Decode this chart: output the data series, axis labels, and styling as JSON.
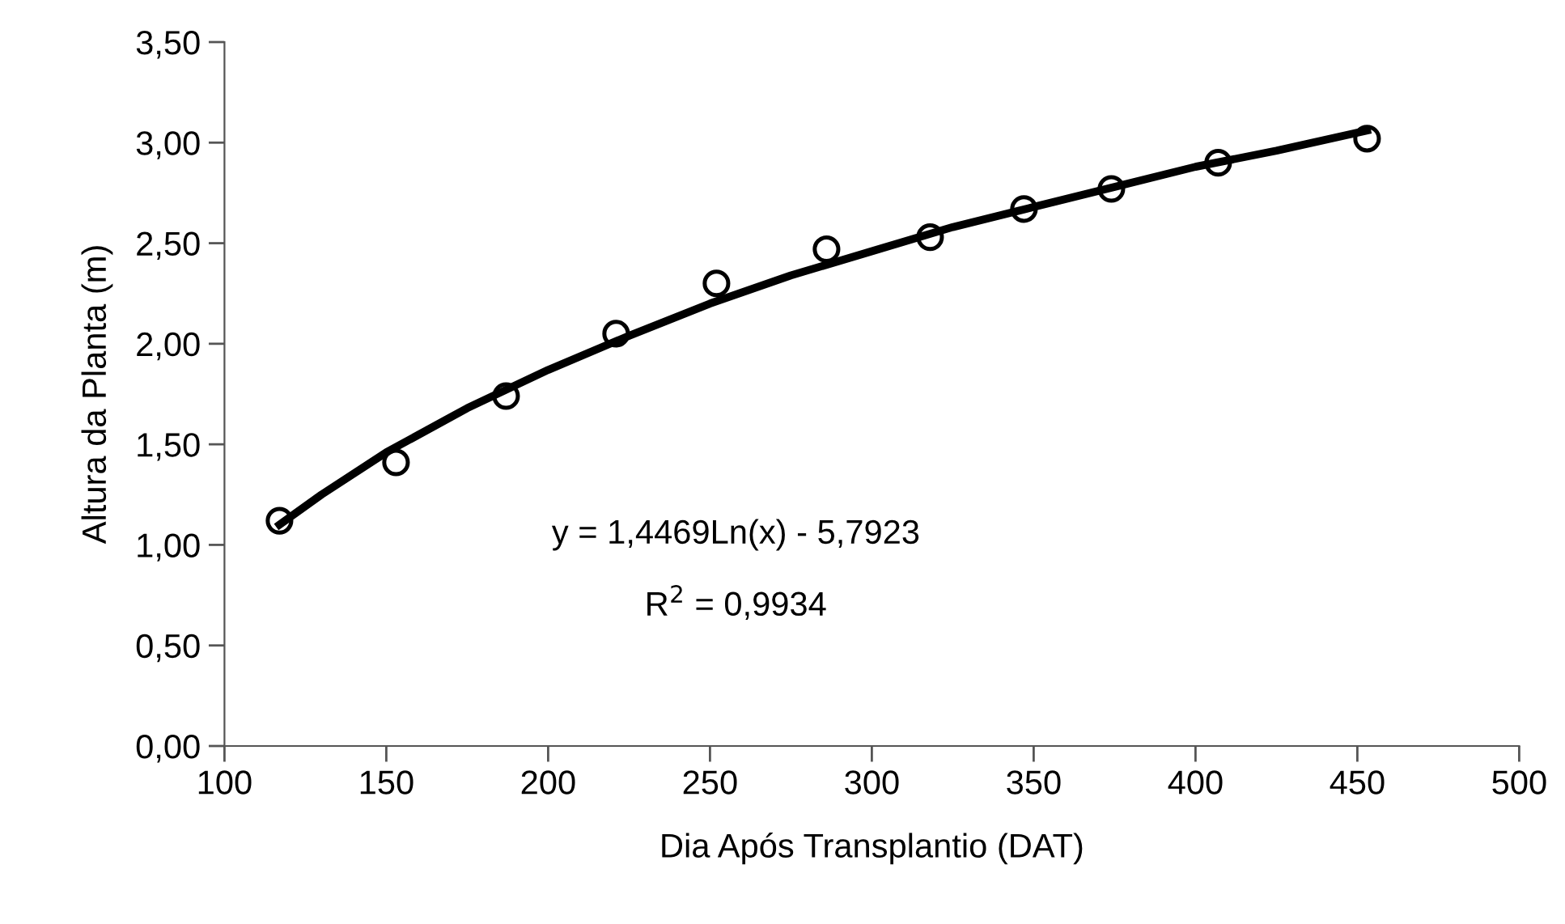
{
  "chart_data": {
    "type": "scatter",
    "xlabel": "Dia Após Transplantio (DAT)",
    "ylabel": "Altura da Planta (m)",
    "annotations": [
      "y = 1,4469Ln(x) - 5,7923",
      "R$^{2}$ = 0,9934"
    ],
    "series": [
      {
        "color": "#000000",
        "marker": "circle",
        "x": [
          117,
          153,
          187,
          221,
          252,
          286,
          318,
          347,
          374,
          407,
          453
        ],
        "values": [
          1.12,
          1.41,
          1.74,
          2.05,
          2.3,
          2.47,
          2.53,
          2.67,
          2.77,
          2.9,
          3.02
        ]
      },
      {
        "type": "line",
        "color": "#000000",
        "marker": "none",
        "line_style": "solid",
        "x": [
          117,
          130,
          150,
          175,
          200,
          225,
          250,
          275,
          300,
          325,
          350,
          375,
          400,
          425,
          453
        ],
        "values": [
          1.1,
          1.25,
          1.46,
          1.68,
          1.87,
          2.04,
          2.2,
          2.34,
          2.46,
          2.58,
          2.68,
          2.78,
          2.88,
          2.96,
          3.06
        ]
      }
    ],
    "xlim": [
      100,
      500
    ],
    "xticks": [
      100,
      150,
      200,
      250,
      300,
      350,
      400,
      450,
      500
    ],
    "ylim": [
      0,
      3.5
    ],
    "yticks": [
      {
        "value": 0,
        "label": "0,00"
      },
      {
        "value": 0.5,
        "label": "0,50"
      },
      {
        "value": 1,
        "label": "1,00"
      },
      {
        "value": 1.5,
        "label": "1,50"
      },
      {
        "value": 2,
        "label": "2,00"
      },
      {
        "value": 2.5,
        "label": "2,50"
      },
      {
        "value": 3,
        "label": "3,00"
      },
      {
        "value": 3.5,
        "label": "3,50"
      }
    ],
    "grid": false,
    "legend": false
  }
}
